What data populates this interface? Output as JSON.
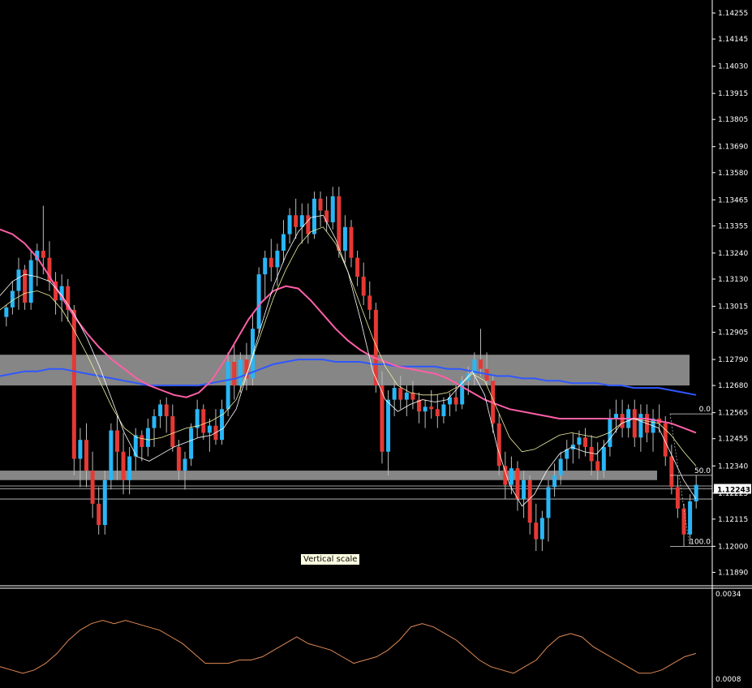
{
  "colors": {
    "background": "#000000",
    "bull_candle": "#29b6f6",
    "bear_candle": "#e53935",
    "wick": "#bbbbbb",
    "ma_fast": "#ffffff",
    "ma_medium": "#f0f0a0",
    "ma_slow": "#ff5fa8",
    "ma_long": "#2f57ff",
    "zone": "#9e9e9e",
    "oscillator": "#e08a55",
    "axis_text": "#ffffff",
    "current_price_bg": "#ffffff"
  },
  "price_axis": {
    "labels": [
      "1.14255",
      "1.14145",
      "1.14030",
      "1.13915",
      "1.13805",
      "1.13690",
      "1.13580",
      "1.13465",
      "1.13355",
      "1.13240",
      "1.13130",
      "1.13015",
      "1.12905",
      "1.12790",
      "1.12680",
      "1.12565",
      "1.12455",
      "1.12340",
      "1.12225",
      "1.12115",
      "1.12000",
      "1.11890"
    ],
    "current_price": "1.12243"
  },
  "oscillator_axis": {
    "top_label": "0.0034",
    "bottom_label": "0.0008"
  },
  "fibonacci": {
    "level_0": "0.0",
    "level_50": "50.0",
    "level_100": "100.0"
  },
  "tooltip": {
    "text": "Vertical scale"
  },
  "chart_data": {
    "type": "candlestick",
    "y_range": [
      1.1184,
      1.1431
    ],
    "candles": [
      [
        1.1297,
        1.1302,
        1.1293,
        1.1301
      ],
      [
        1.1301,
        1.1312,
        1.1298,
        1.1308
      ],
      [
        1.1308,
        1.1322,
        1.13,
        1.1317
      ],
      [
        1.1317,
        1.1319,
        1.13,
        1.1303
      ],
      [
        1.1303,
        1.1325,
        1.13,
        1.1321
      ],
      [
        1.1321,
        1.1328,
        1.131,
        1.1325
      ],
      [
        1.1325,
        1.1344,
        1.1315,
        1.1322
      ],
      [
        1.1322,
        1.1329,
        1.1308,
        1.1312
      ],
      [
        1.1312,
        1.1316,
        1.1298,
        1.1304
      ],
      [
        1.1304,
        1.1315,
        1.1295,
        1.131
      ],
      [
        1.131,
        1.1313,
        1.1295,
        1.13
      ],
      [
        1.13,
        1.1302,
        1.123,
        1.1237
      ],
      [
        1.1237,
        1.125,
        1.1225,
        1.1245
      ],
      [
        1.1245,
        1.1252,
        1.1225,
        1.1232
      ],
      [
        1.1232,
        1.124,
        1.1212,
        1.1218
      ],
      [
        1.1218,
        1.1225,
        1.1205,
        1.1209
      ],
      [
        1.1209,
        1.1232,
        1.1205,
        1.1228
      ],
      [
        1.1228,
        1.1252,
        1.1224,
        1.1249
      ],
      [
        1.1249,
        1.1255,
        1.1228,
        1.124
      ],
      [
        1.124,
        1.1248,
        1.1222,
        1.1228
      ],
      [
        1.1228,
        1.1242,
        1.1222,
        1.1238
      ],
      [
        1.1238,
        1.125,
        1.1232,
        1.1247
      ],
      [
        1.1247,
        1.1249,
        1.1236,
        1.1242
      ],
      [
        1.1242,
        1.1254,
        1.1238,
        1.125
      ],
      [
        1.125,
        1.1258,
        1.1242,
        1.1255
      ],
      [
        1.1255,
        1.1262,
        1.125,
        1.126
      ],
      [
        1.126,
        1.1263,
        1.1248,
        1.1255
      ],
      [
        1.1255,
        1.126,
        1.124,
        1.1242
      ],
      [
        1.1242,
        1.1245,
        1.1228,
        1.1232
      ],
      [
        1.1232,
        1.124,
        1.1224,
        1.1237
      ],
      [
        1.1237,
        1.1252,
        1.1234,
        1.125
      ],
      [
        1.125,
        1.1262,
        1.1246,
        1.1258
      ],
      [
        1.1258,
        1.126,
        1.1245,
        1.1248
      ],
      [
        1.1248,
        1.1254,
        1.124,
        1.1251
      ],
      [
        1.1251,
        1.1258,
        1.1243,
        1.1245
      ],
      [
        1.1245,
        1.1262,
        1.1243,
        1.1258
      ],
      [
        1.1258,
        1.1282,
        1.1255,
        1.1278
      ],
      [
        1.1278,
        1.1285,
        1.1262,
        1.1268
      ],
      [
        1.1268,
        1.1282,
        1.1265,
        1.1279
      ],
      [
        1.1279,
        1.1286,
        1.1266,
        1.1271
      ],
      [
        1.1271,
        1.1298,
        1.1268,
        1.1292
      ],
      [
        1.1292,
        1.1318,
        1.129,
        1.1315
      ],
      [
        1.1315,
        1.1325,
        1.1305,
        1.1322
      ],
      [
        1.1322,
        1.133,
        1.1312,
        1.1318
      ],
      [
        1.1318,
        1.1328,
        1.131,
        1.1325
      ],
      [
        1.1325,
        1.1338,
        1.132,
        1.1332
      ],
      [
        1.1332,
        1.1343,
        1.1328,
        1.134
      ],
      [
        1.134,
        1.1347,
        1.133,
        1.1335
      ],
      [
        1.1335,
        1.1345,
        1.1328,
        1.134
      ],
      [
        1.134,
        1.1345,
        1.1328,
        1.1332
      ],
      [
        1.1332,
        1.135,
        1.133,
        1.1347
      ],
      [
        1.1347,
        1.135,
        1.1335,
        1.1342
      ],
      [
        1.1342,
        1.1348,
        1.1333,
        1.1337
      ],
      [
        1.1337,
        1.1352,
        1.1334,
        1.1348
      ],
      [
        1.1348,
        1.1352,
        1.1322,
        1.1325
      ],
      [
        1.1325,
        1.134,
        1.132,
        1.1335
      ],
      [
        1.1335,
        1.1338,
        1.1318,
        1.1322
      ],
      [
        1.1322,
        1.1325,
        1.131,
        1.1314
      ],
      [
        1.1314,
        1.132,
        1.1302,
        1.1306
      ],
      [
        1.1306,
        1.1312,
        1.1296,
        1.13
      ],
      [
        1.13,
        1.1303,
        1.1265,
        1.1268
      ],
      [
        1.1268,
        1.1274,
        1.1235,
        1.124
      ],
      [
        1.124,
        1.1266,
        1.123,
        1.1262
      ],
      [
        1.1262,
        1.127,
        1.1255,
        1.1267
      ],
      [
        1.1267,
        1.1272,
        1.1258,
        1.1262
      ],
      [
        1.1262,
        1.1268,
        1.1255,
        1.1265
      ],
      [
        1.1265,
        1.127,
        1.1258,
        1.1262
      ],
      [
        1.1262,
        1.1265,
        1.1252,
        1.1257
      ],
      [
        1.1257,
        1.1262,
        1.125,
        1.1259
      ],
      [
        1.1259,
        1.1266,
        1.1254,
        1.1258
      ],
      [
        1.1258,
        1.1264,
        1.125,
        1.1255
      ],
      [
        1.1255,
        1.1263,
        1.1252,
        1.126
      ],
      [
        1.126,
        1.1265,
        1.1255,
        1.1263
      ],
      [
        1.1263,
        1.1268,
        1.1257,
        1.126
      ],
      [
        1.126,
        1.1272,
        1.1258,
        1.127
      ],
      [
        1.127,
        1.1276,
        1.1264,
        1.1273
      ],
      [
        1.1273,
        1.1282,
        1.1268,
        1.1279
      ],
      [
        1.1279,
        1.1292,
        1.1272,
        1.1275
      ],
      [
        1.1275,
        1.1282,
        1.1268,
        1.127
      ],
      [
        1.127,
        1.1272,
        1.1248,
        1.1252
      ],
      [
        1.1252,
        1.1256,
        1.123,
        1.1234
      ],
      [
        1.1234,
        1.124,
        1.122,
        1.1226
      ],
      [
        1.1226,
        1.1238,
        1.1222,
        1.1233
      ],
      [
        1.1233,
        1.1236,
        1.1215,
        1.122
      ],
      [
        1.122,
        1.1232,
        1.1212,
        1.1228
      ],
      [
        1.1228,
        1.123,
        1.1205,
        1.121
      ],
      [
        1.121,
        1.1218,
        1.1198,
        1.1203
      ],
      [
        1.1203,
        1.1215,
        1.1198,
        1.1212
      ],
      [
        1.1212,
        1.1228,
        1.1202,
        1.1225
      ],
      [
        1.1225,
        1.1235,
        1.1221,
        1.123
      ],
      [
        1.123,
        1.124,
        1.1226,
        1.1237
      ],
      [
        1.1237,
        1.1245,
        1.1232,
        1.1241
      ],
      [
        1.1241,
        1.1248,
        1.1235,
        1.1243
      ],
      [
        1.1243,
        1.1249,
        1.1237,
        1.1246
      ],
      [
        1.1246,
        1.125,
        1.1238,
        1.1242
      ],
      [
        1.1242,
        1.1247,
        1.123,
        1.1236
      ],
      [
        1.1236,
        1.1244,
        1.1228,
        1.1232
      ],
      [
        1.1232,
        1.1245,
        1.1229,
        1.1242
      ],
      [
        1.1242,
        1.1258,
        1.1238,
        1.1254
      ],
      [
        1.1254,
        1.1262,
        1.1248,
        1.1256
      ],
      [
        1.1256,
        1.1262,
        1.1246,
        1.125
      ],
      [
        1.125,
        1.126,
        1.1246,
        1.1258
      ],
      [
        1.1258,
        1.1262,
        1.1242,
        1.1246
      ],
      [
        1.1246,
        1.126,
        1.124,
        1.1256
      ],
      [
        1.1256,
        1.126,
        1.1244,
        1.1248
      ],
      [
        1.1248,
        1.1258,
        1.124,
        1.1254
      ],
      [
        1.1254,
        1.126,
        1.1248,
        1.1252
      ],
      [
        1.1252,
        1.1255,
        1.1234,
        1.1238
      ],
      [
        1.1238,
        1.1243,
        1.1222,
        1.1225
      ],
      [
        1.1225,
        1.123,
        1.1212,
        1.1216
      ],
      [
        1.1216,
        1.1218,
        1.12,
        1.1205
      ],
      [
        1.1205,
        1.1222,
        1.1201,
        1.1219
      ],
      [
        1.1219,
        1.123,
        1.1216,
        1.1226
      ]
    ],
    "ma_fast": [
      1.1306,
      1.1312,
      1.1315,
      1.1314,
      1.1312,
      1.1306,
      1.1298,
      1.1288,
      1.1276,
      1.1262,
      1.1248,
      1.1238,
      1.1236,
      1.1239,
      1.1242,
      1.1244,
      1.1246,
      1.1247,
      1.125,
      1.1258,
      1.1275,
      1.1293,
      1.131,
      1.1323,
      1.1333,
      1.1339,
      1.134,
      1.133,
      1.1316,
      1.1296,
      1.1274,
      1.1262,
      1.1257,
      1.126,
      1.1262,
      1.1261,
      1.1262,
      1.1268,
      1.1274,
      1.1264,
      1.1242,
      1.1226,
      1.1217,
      1.1222,
      1.1232,
      1.1239,
      1.1242,
      1.124,
      1.1239,
      1.1245,
      1.1252,
      1.1254,
      1.1252,
      1.125,
      1.1239,
      1.1228,
      1.122
    ],
    "ma_medium": [
      1.13,
      1.1304,
      1.1307,
      1.1308,
      1.1306,
      1.13,
      1.1291,
      1.1281,
      1.127,
      1.1259,
      1.125,
      1.1246,
      1.1245,
      1.1246,
      1.1248,
      1.125,
      1.1251,
      1.1253,
      1.1256,
      1.1262,
      1.1275,
      1.129,
      1.1305,
      1.1317,
      1.1327,
      1.1333,
      1.1335,
      1.1328,
      1.1316,
      1.1302,
      1.1288,
      1.1276,
      1.1268,
      1.1265,
      1.1264,
      1.1264,
      1.1265,
      1.1268,
      1.1273,
      1.127,
      1.1258,
      1.1246,
      1.124,
      1.1241,
      1.1244,
      1.1247,
      1.1248,
      1.1247,
      1.1246,
      1.1248,
      1.1252,
      1.1254,
      1.1253,
      1.1252,
      1.1247,
      1.124,
      1.1234
    ],
    "ma_slow": [
      1.1334,
      1.1332,
      1.1328,
      1.1322,
      1.1314,
      1.1305,
      1.1297,
      1.129,
      1.1284,
      1.1279,
      1.1275,
      1.1271,
      1.1268,
      1.1266,
      1.1264,
      1.1263,
      1.1265,
      1.127,
      1.1278,
      1.1287,
      1.1296,
      1.1303,
      1.1308,
      1.131,
      1.1309,
      1.1304,
      1.1298,
      1.1292,
      1.1287,
      1.1283,
      1.128,
      1.1278,
      1.1276,
      1.1275,
      1.1274,
      1.1273,
      1.1271,
      1.1268,
      1.1265,
      1.1262,
      1.126,
      1.1258,
      1.1257,
      1.1256,
      1.1255,
      1.1254,
      1.1254,
      1.1254,
      1.1254,
      1.1254,
      1.1254,
      1.1254,
      1.1254,
      1.1253,
      1.1252,
      1.125,
      1.1248
    ],
    "ma_long": [
      1.1272,
      1.1273,
      1.1274,
      1.1274,
      1.1275,
      1.1275,
      1.1274,
      1.1273,
      1.1272,
      1.1271,
      1.127,
      1.1269,
      1.1268,
      1.1268,
      1.1268,
      1.1268,
      1.1268,
      1.1269,
      1.127,
      1.1271,
      1.1273,
      1.1275,
      1.1277,
      1.1278,
      1.1279,
      1.1279,
      1.1279,
      1.1278,
      1.1278,
      1.1278,
      1.1277,
      1.1277,
      1.1276,
      1.1276,
      1.1276,
      1.1276,
      1.1275,
      1.1275,
      1.1274,
      1.1273,
      1.1272,
      1.1272,
      1.1271,
      1.1271,
      1.127,
      1.127,
      1.1269,
      1.1269,
      1.1269,
      1.1268,
      1.1268,
      1.1267,
      1.1267,
      1.1267,
      1.1266,
      1.1265,
      1.1264
    ],
    "zones": [
      {
        "low": 1.1268,
        "high": 1.1281
      },
      {
        "low": 1.1228,
        "high": 1.1232
      }
    ],
    "horizontal_lines": [
      1.12255,
      1.12243,
      1.122
    ],
    "oscillator": {
      "y_range": [
        0.0008,
        0.0034
      ],
      "values": [
        0.0012,
        0.0011,
        0.001,
        0.0011,
        0.0013,
        0.0016,
        0.002,
        0.0023,
        0.0025,
        0.0026,
        0.0025,
        0.0026,
        0.0025,
        0.0024,
        0.0023,
        0.0021,
        0.0019,
        0.0016,
        0.0013,
        0.0013,
        0.0013,
        0.0014,
        0.0014,
        0.0015,
        0.0017,
        0.0019,
        0.0021,
        0.0019,
        0.0018,
        0.0017,
        0.0015,
        0.0013,
        0.0014,
        0.0015,
        0.0017,
        0.002,
        0.0024,
        0.0025,
        0.0024,
        0.0022,
        0.002,
        0.0017,
        0.0014,
        0.0012,
        0.0011,
        0.001,
        0.0012,
        0.0014,
        0.0018,
        0.0021,
        0.0022,
        0.0021,
        0.0018,
        0.0016,
        0.0014,
        0.0012,
        0.001,
        0.001,
        0.0011,
        0.0013,
        0.0015,
        0.0016
      ]
    }
  }
}
